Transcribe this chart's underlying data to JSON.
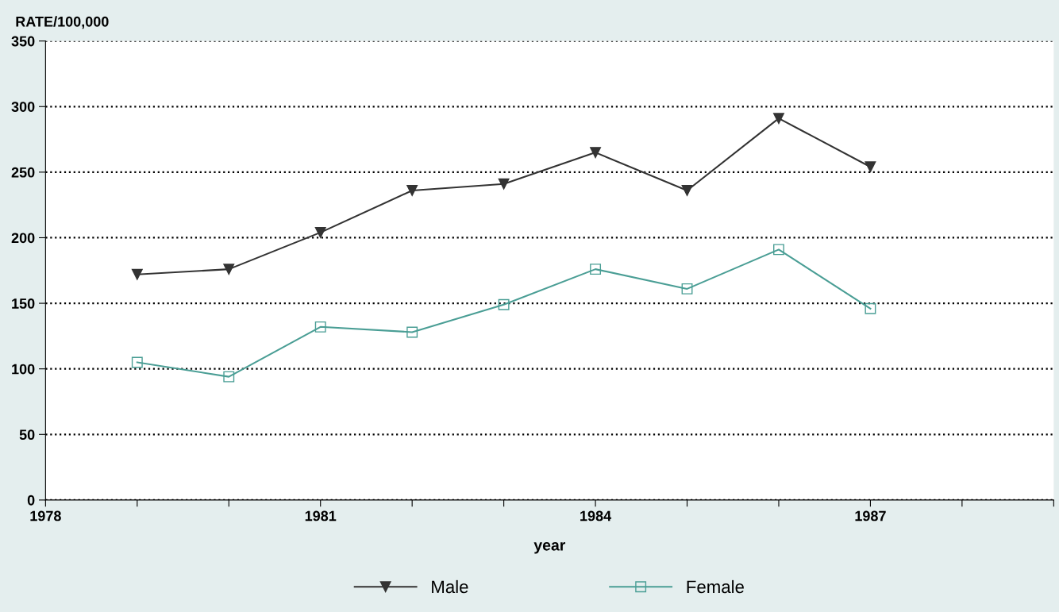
{
  "chart_data": {
    "type": "line",
    "ylabel": "RATE/100,000",
    "xlabel": "year",
    "x": [
      1979,
      1980,
      1981,
      1982,
      1983,
      1984,
      1985,
      1986,
      1987
    ],
    "series": [
      {
        "name": "Male",
        "color": "#333333",
        "marker": "triangle",
        "values": [
          172,
          176,
          204,
          236,
          241,
          265,
          236,
          291,
          254
        ]
      },
      {
        "name": "Female",
        "color": "#4a9e95",
        "marker": "square",
        "values": [
          105,
          94,
          132,
          128,
          149,
          176,
          161,
          191,
          146
        ]
      }
    ],
    "xlim": [
      1978,
      1989
    ],
    "xticks": [
      1978,
      {
        "value": 1979,
        "label": null
      },
      {
        "value": 1980,
        "label": null
      },
      1981,
      {
        "value": 1982,
        "label": null
      },
      {
        "value": 1983,
        "label": null
      },
      1984,
      {
        "value": 1985,
        "label": null
      },
      {
        "value": 1986,
        "label": null
      },
      1987,
      {
        "value": 1988,
        "label": null
      },
      {
        "value": 1989,
        "label": null
      }
    ],
    "ylim": [
      0,
      350
    ],
    "yticks": [
      0,
      50,
      100,
      150,
      200,
      250,
      300,
      350
    ],
    "grid": "y",
    "legend": "bottom",
    "line_style": "solid"
  }
}
